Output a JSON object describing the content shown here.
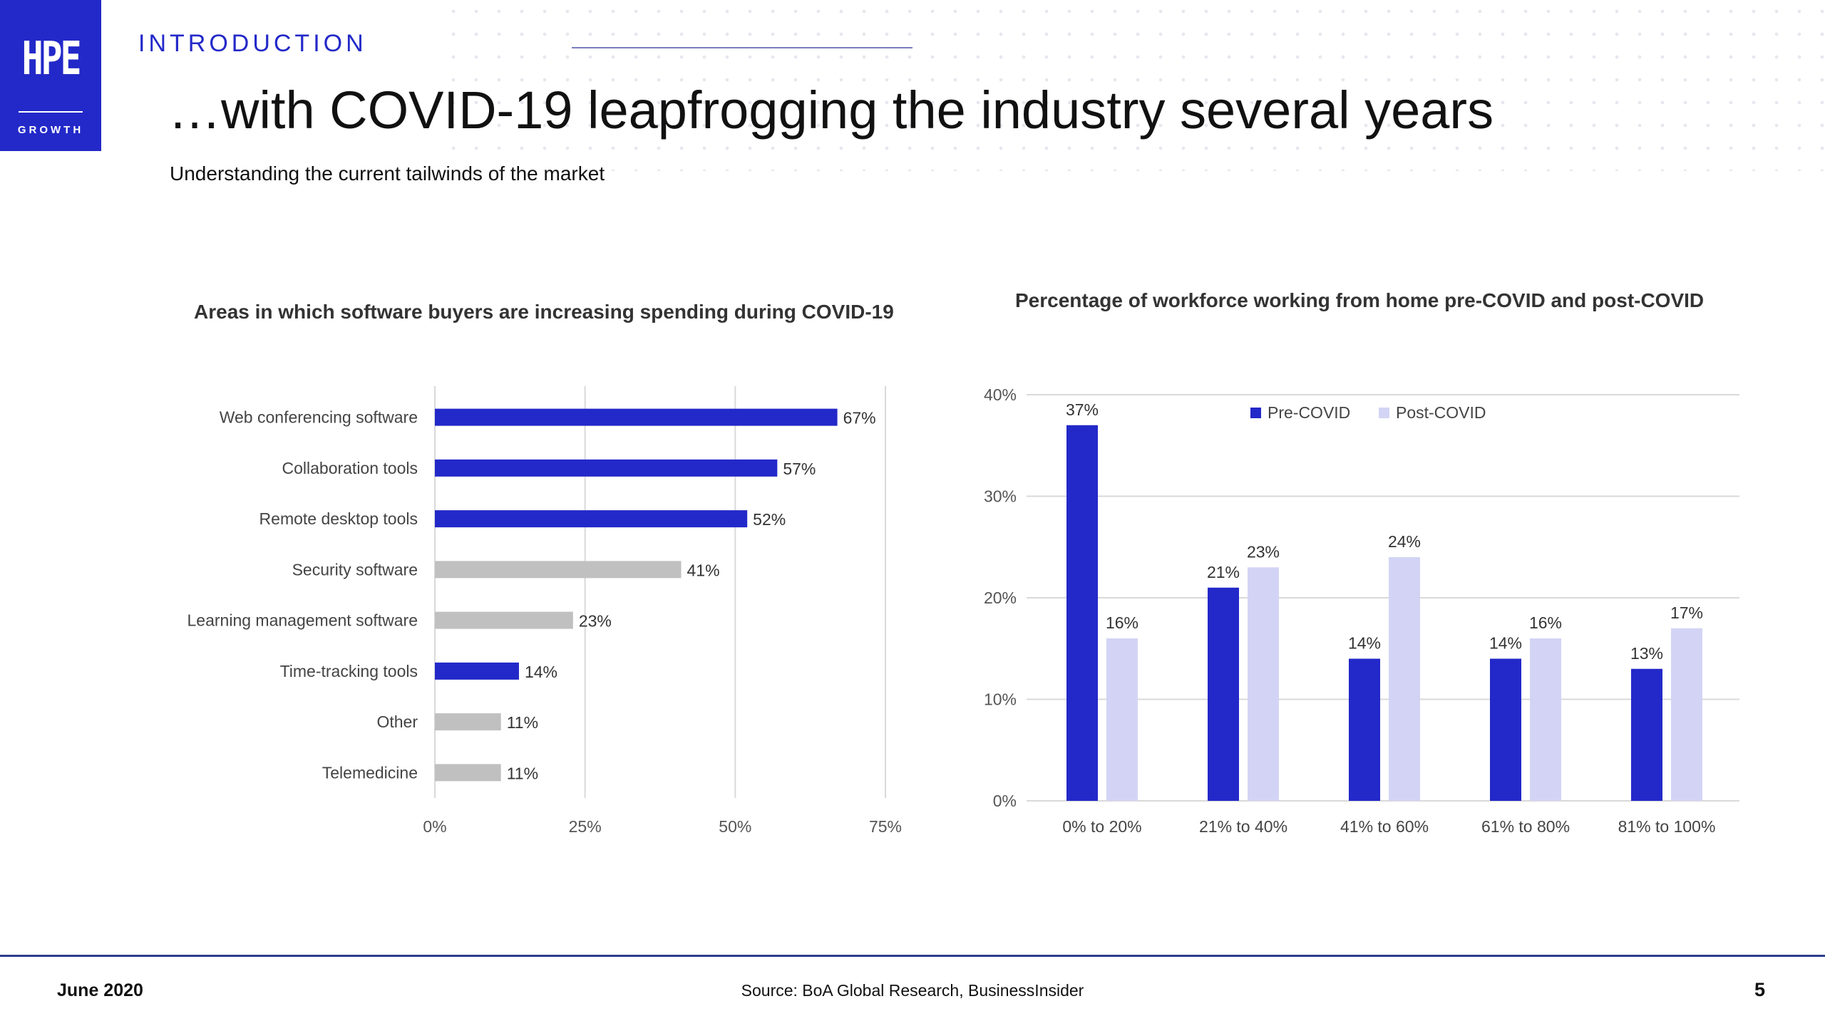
{
  "logo": {
    "mark": "HPE",
    "subtext": "GROWTH"
  },
  "header": {
    "section": "INTRODUCTION",
    "title": "…with COVID-19 leapfrogging the industry several years",
    "subtitle": "Understanding the current tailwinds of the market"
  },
  "colors": {
    "brand_blue": "#2329c8",
    "highlight_bar": "#2329c8",
    "neutral_bar": "#c0c0c0",
    "pre_covid": "#2329c8",
    "post_covid": "#d3d4f5",
    "gridline": "#d9d9d9"
  },
  "chart_data": [
    {
      "type": "bar",
      "orientation": "horizontal",
      "title": "Areas in which software buyers are increasing spending during COVID-19",
      "categories": [
        "Web conferencing software",
        "Collaboration tools",
        "Remote desktop  tools",
        "Security software",
        "Learning management software",
        "Time-tracking tools",
        "Other",
        "Telemedicine"
      ],
      "values": [
        67,
        57,
        52,
        41,
        23,
        14,
        11,
        11
      ],
      "value_labels": [
        "67%",
        "57%",
        "52%",
        "41%",
        "23%",
        "14%",
        "11%",
        "11%"
      ],
      "highlighted": [
        true,
        true,
        true,
        false,
        false,
        true,
        false,
        false
      ],
      "xlim": [
        0,
        75
      ],
      "xticks": [
        0,
        25,
        50,
        75
      ],
      "xtick_labels": [
        "0%",
        "25%",
        "50%",
        "75%"
      ],
      "grid": "vertical"
    },
    {
      "type": "bar",
      "orientation": "vertical",
      "title": "Percentage of workforce working from home pre-COVID and post-COVID",
      "categories": [
        "0% to 20%",
        "21% to 40%",
        "41% to 60%",
        "61% to 80%",
        "81% to 100%"
      ],
      "series": [
        {
          "name": "Pre-COVID",
          "values": [
            37,
            21,
            14,
            14,
            13
          ],
          "value_labels": [
            "37%",
            "21%",
            "14%",
            "14%",
            "13%"
          ]
        },
        {
          "name": "Post-COVID",
          "values": [
            16,
            23,
            24,
            16,
            17
          ],
          "value_labels": [
            "16%",
            "23%",
            "24%",
            "16%",
            "17%"
          ]
        }
      ],
      "ylim": [
        0,
        40
      ],
      "yticks": [
        0,
        10,
        20,
        30,
        40
      ],
      "ytick_labels": [
        "0%",
        "10%",
        "20%",
        "30%",
        "40%"
      ],
      "legend_position": "top",
      "grid": "horizontal"
    }
  ],
  "footer": {
    "date": "June 2020",
    "source": "Source: BoA Global Research, BusinessInsider",
    "page_number": "5"
  }
}
